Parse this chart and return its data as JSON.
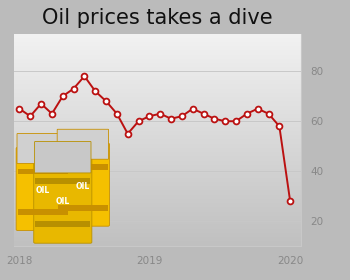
{
  "title": "Oil prices takes a dive",
  "title_fontsize": 15,
  "line_color": "#bb1111",
  "marker_facecolor": "#ffffff",
  "marker_edgecolor": "#bb1111",
  "grid_color": "#c8c8c8",
  "axis_label_color": "#888888",
  "x_ticks": [
    0,
    12,
    25
  ],
  "x_tick_labels": [
    "2018",
    "2019",
    "2020"
  ],
  "y_ticks": [
    20,
    40,
    60,
    80
  ],
  "ylim": [
    10,
    95
  ],
  "xlim": [
    -0.5,
    26
  ],
  "prices": [
    65,
    62,
    67,
    63,
    70,
    73,
    78,
    72,
    68,
    63,
    55,
    60,
    62,
    63,
    61,
    62,
    65,
    63,
    61,
    60,
    60,
    63,
    65,
    63,
    58,
    28
  ],
  "figsize": [
    3.5,
    2.8
  ],
  "dpi": 100,
  "bg_top": "#f2f2f2",
  "bg_bottom": "#c0c0c0",
  "barrel_yellow": "#f5c000",
  "barrel_dark": "#c89000",
  "barrel_top": "#b0b0b0",
  "barrel_top_light": "#d0d0d0"
}
